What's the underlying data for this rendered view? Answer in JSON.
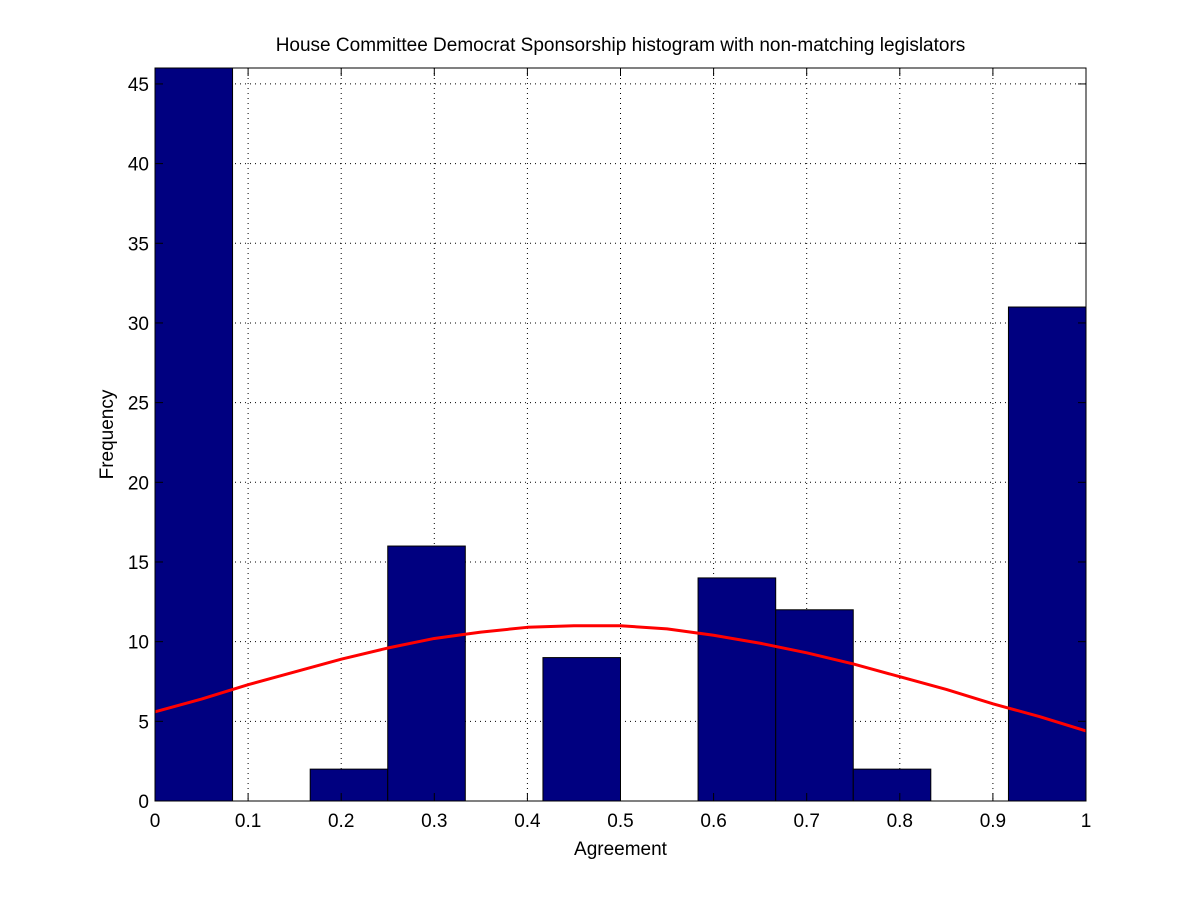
{
  "chart_data": {
    "type": "bar",
    "title": "House Committee Democrat Sponsorship histogram with non-matching legislators",
    "xlabel": "Agreement",
    "ylabel": "Frequency",
    "xlim": [
      0,
      1
    ],
    "ylim": [
      0,
      46
    ],
    "xticks": [
      0,
      0.1,
      0.2,
      0.3,
      0.4,
      0.5,
      0.6,
      0.7,
      0.8,
      0.9,
      1
    ],
    "xtick_labels": [
      "0",
      "0.1",
      "0.2",
      "0.3",
      "0.4",
      "0.5",
      "0.6",
      "0.7",
      "0.8",
      "0.9",
      "1"
    ],
    "yticks": [
      0,
      5,
      10,
      15,
      20,
      25,
      30,
      35,
      40,
      45
    ],
    "ytick_labels": [
      "0",
      "5",
      "10",
      "15",
      "20",
      "25",
      "30",
      "35",
      "40",
      "45"
    ],
    "grid": true,
    "bins": [
      {
        "x0": 0.0,
        "x1": 0.0833,
        "count": 46
      },
      {
        "x0": 0.0833,
        "x1": 0.1667,
        "count": 0
      },
      {
        "x0": 0.1667,
        "x1": 0.25,
        "count": 2
      },
      {
        "x0": 0.25,
        "x1": 0.3333,
        "count": 16
      },
      {
        "x0": 0.3333,
        "x1": 0.4167,
        "count": 0
      },
      {
        "x0": 0.4167,
        "x1": 0.5,
        "count": 9
      },
      {
        "x0": 0.5,
        "x1": 0.5833,
        "count": 0
      },
      {
        "x0": 0.5833,
        "x1": 0.6667,
        "count": 14
      },
      {
        "x0": 0.6667,
        "x1": 0.75,
        "count": 12
      },
      {
        "x0": 0.75,
        "x1": 0.8333,
        "count": 2
      },
      {
        "x0": 0.8333,
        "x1": 0.9167,
        "count": 0
      },
      {
        "x0": 0.9167,
        "x1": 1.0,
        "count": 31
      }
    ],
    "fit_curve": {
      "type": "line",
      "x": [
        0,
        0.05,
        0.1,
        0.15,
        0.2,
        0.25,
        0.3,
        0.35,
        0.4,
        0.45,
        0.5,
        0.55,
        0.6,
        0.65,
        0.7,
        0.75,
        0.8,
        0.85,
        0.9,
        0.95,
        1.0
      ],
      "y": [
        5.6,
        6.4,
        7.3,
        8.1,
        8.9,
        9.6,
        10.2,
        10.6,
        10.9,
        11.0,
        11.0,
        10.8,
        10.4,
        9.9,
        9.3,
        8.6,
        7.8,
        7.0,
        6.1,
        5.3,
        4.4
      ]
    },
    "colors": {
      "bar_fill": "#000080",
      "bar_edge": "#000000",
      "curve": "#ff0000",
      "grid": "#000000",
      "axes": "#000000"
    }
  }
}
